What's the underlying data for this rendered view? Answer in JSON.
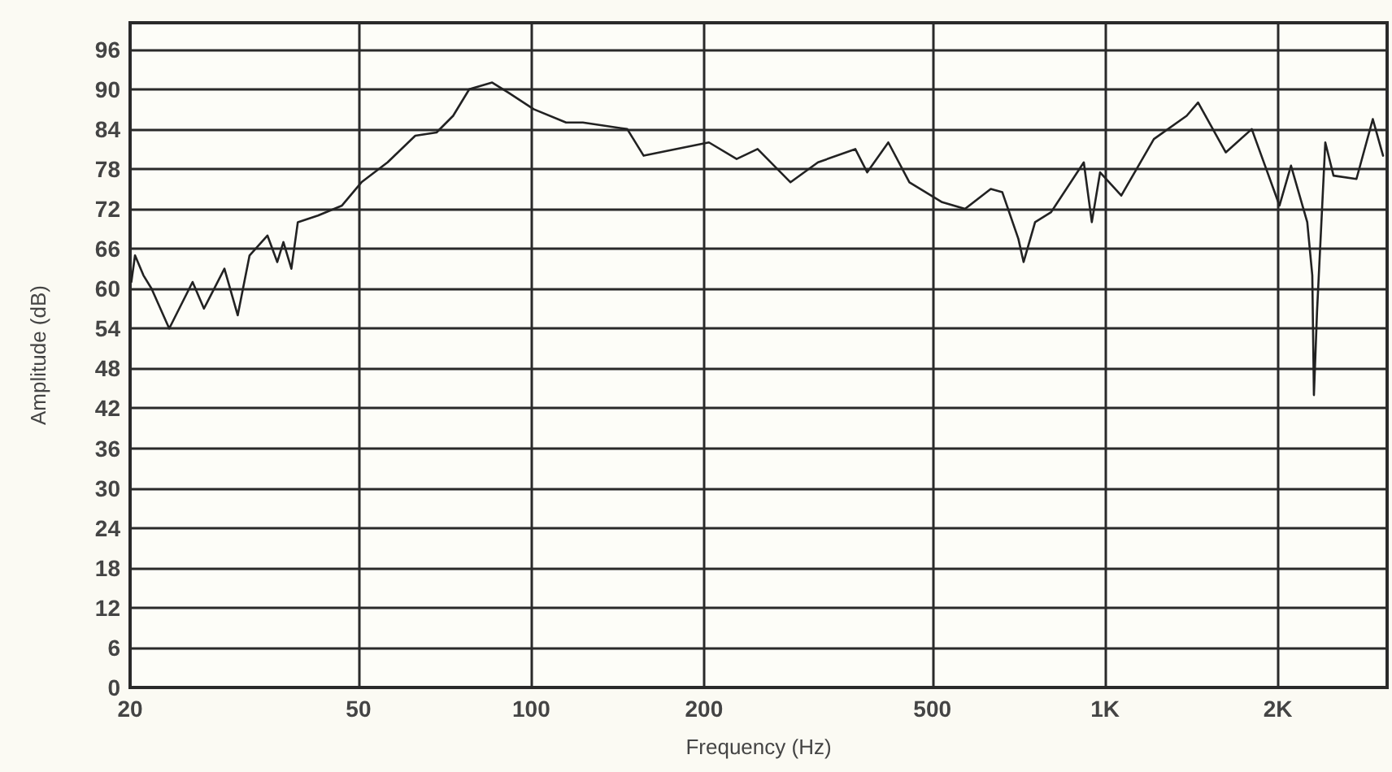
{
  "chart_data": {
    "type": "line",
    "xlabel": "Frequency (Hz)",
    "ylabel": "Amplitude (dB)",
    "log": "x",
    "grid": true,
    "marker": "none",
    "line_style": "solid",
    "xlim": [
      20,
      3100
    ],
    "xticks": [
      20,
      50,
      100,
      200,
      500,
      {
        "value": 1000,
        "label": "1K"
      },
      {
        "value": 2000,
        "label": "2K"
      }
    ],
    "ylim": [
      0,
      100
    ],
    "yticks": [
      0,
      6,
      12,
      18,
      24,
      30,
      36,
      42,
      48,
      54,
      60,
      66,
      72,
      78,
      84,
      90,
      96
    ],
    "series": [
      {
        "color": "#222222",
        "x": [
          20.1,
          20.4,
          21.1,
          21.8,
          23.4,
          25.7,
          26.9,
          29.2,
          30.8,
          32.3,
          34.7,
          36.1,
          37,
          38.2,
          39.2,
          42.5,
          46.8,
          50.6,
          56.2,
          62.8,
          68.4,
          73.1,
          78,
          85.5,
          91.2,
          101,
          115,
          123,
          147,
          157,
          204,
          228,
          248,
          283,
          316,
          367,
          385,
          419,
          456,
          520,
          570,
          632,
          662,
          706,
          721,
          755,
          805,
          918,
          948,
          980,
          1067,
          1216,
          1387,
          1452,
          1623,
          1801,
          2013,
          2108,
          2250,
          2296,
          2311,
          2340,
          2419,
          2500,
          2741,
          2927,
          3050
        ],
        "values": [
          61,
          65,
          62,
          60,
          54,
          61,
          57,
          63,
          56,
          65,
          68,
          64,
          67,
          63,
          70,
          71,
          72.5,
          76,
          79,
          83,
          83.5,
          86,
          90,
          91,
          89.5,
          87,
          85,
          85,
          84,
          80,
          82,
          79.5,
          81,
          76,
          79,
          81,
          77.5,
          82,
          76,
          73,
          72,
          75,
          74.5,
          67.5,
          64,
          70,
          71.5,
          79,
          70,
          77.5,
          74,
          82.5,
          86,
          88,
          80.5,
          84,
          72.5,
          78.5,
          70,
          62,
          44,
          56.5,
          82,
          77,
          76.5,
          85.5,
          80
        ]
      }
    ]
  }
}
